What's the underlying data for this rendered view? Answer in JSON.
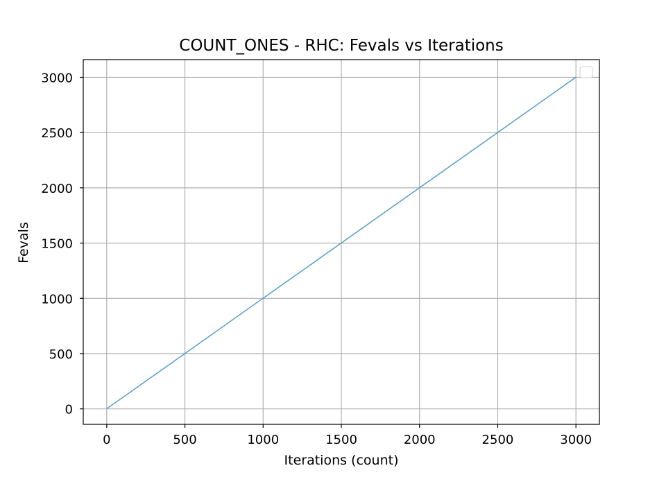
{
  "chart_data": {
    "type": "line",
    "title": "COUNT_ONES - RHC: Fevals vs Iterations",
    "xlabel": "Iterations (count)",
    "ylabel": "Fevals",
    "xlim": [
      -150,
      3150
    ],
    "ylim": [
      -140,
      3160
    ],
    "xticks": [
      0,
      500,
      1000,
      1500,
      2000,
      2500,
      3000
    ],
    "yticks": [
      0,
      500,
      1000,
      1500,
      2000,
      2500,
      3000
    ],
    "xtick_labels": [
      "0",
      "500",
      "1000",
      "1500",
      "2000",
      "2500",
      "3000"
    ],
    "ytick_labels": [
      "0",
      "500",
      "1000",
      "1500",
      "2000",
      "2500",
      "3000"
    ],
    "grid": true,
    "legend": {
      "placement": "top-right",
      "entries": []
    },
    "series": [
      {
        "color": "#5fa2cb",
        "x": [
          0,
          3000
        ],
        "y": [
          1,
          3001
        ]
      }
    ]
  }
}
